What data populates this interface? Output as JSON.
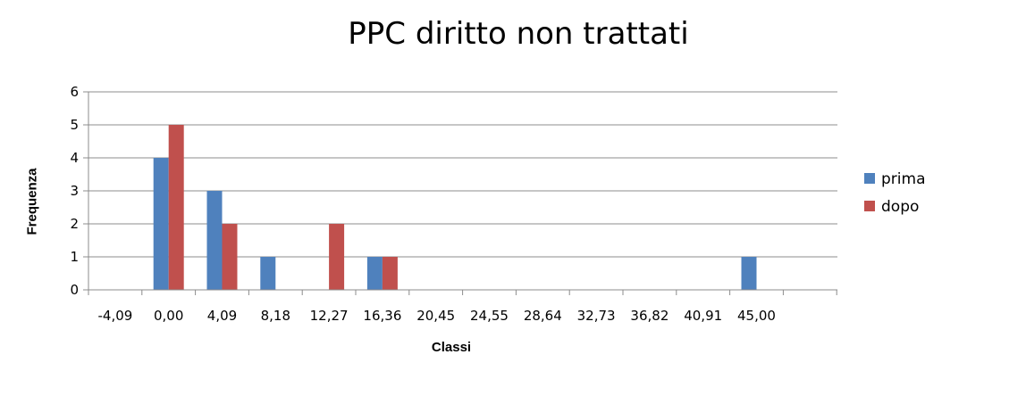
{
  "chart_data": {
    "type": "bar",
    "title": "PPC diritto non trattati",
    "xlabel": "Classi",
    "ylabel": "Frequenza",
    "categories": [
      "-4,09",
      "0,00",
      "4,09",
      "8,18",
      "12,27",
      "16,36",
      "20,45",
      "24,55",
      "28,64",
      "32,73",
      "36,82",
      "40,91",
      "45,00"
    ],
    "yticks": [
      "0",
      "1",
      "2",
      "3",
      "4",
      "5",
      "6"
    ],
    "ylim": [
      0,
      6
    ],
    "grid": true,
    "legend": "right",
    "series": [
      {
        "name": "prima",
        "color": "#4F81BD",
        "values": [
          0,
          4,
          3,
          1,
          0,
          1,
          0,
          0,
          0,
          0,
          0,
          0,
          1
        ]
      },
      {
        "name": "dopo",
        "color": "#C0504D",
        "values": [
          0,
          5,
          2,
          0,
          2,
          1,
          0,
          0,
          0,
          0,
          0,
          0,
          0
        ]
      }
    ]
  }
}
